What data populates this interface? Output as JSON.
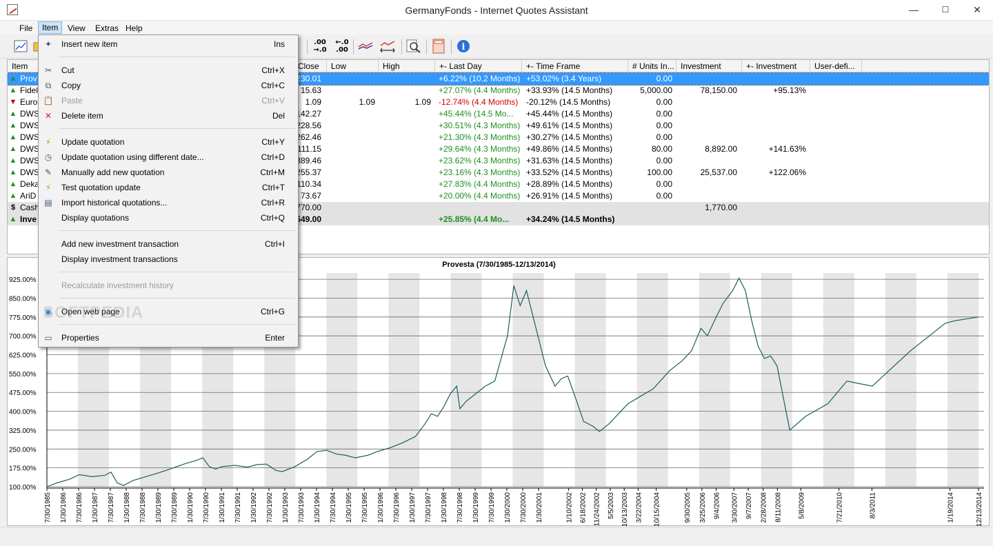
{
  "window": {
    "title": "GermanyFonds - Internet Quotes Assistant",
    "minimize": "—",
    "maximize": "☐",
    "close": "✕"
  },
  "menubar": [
    "File",
    "Item",
    "View",
    "Extras",
    "Help"
  ],
  "toolbar": {
    "icons": [
      "chart-icon",
      "folder-icon",
      "decimals-increase-icon",
      "decimals-decrease-icon",
      "compare-chart-icon",
      "range-chart-icon",
      "magnifier-icon",
      "calculator-icon",
      "info-icon"
    ],
    "dec_inc": ".00\n→.0",
    "dec_dec": "←.0\n.00"
  },
  "columns": [
    "Item",
    "Close",
    "Low",
    "High",
    "+- Last Day",
    "+- Time Frame",
    "# Units In...",
    "Investment",
    "+- Investment",
    "User-defi..."
  ],
  "rows": [
    {
      "icon": "up",
      "name": "Prov",
      "close": "230.01",
      "low": "",
      "high": "",
      "last_day": "+6.22% (10.2 Months)",
      "timeframe": "+53.02% (3.4 Years)",
      "units": "0.00",
      "investment": "",
      "inv_change": "",
      "style": "sel",
      "ld_color": "green"
    },
    {
      "icon": "up",
      "name": "Fidel",
      "close": "15.63",
      "low": "",
      "high": "",
      "last_day": "+27.07% (4.4 Months)",
      "timeframe": "+33.93% (14.5 Months)",
      "units": "5,000.00",
      "investment": "78,150.00",
      "inv_change": "+95.13%",
      "style": "",
      "ld_color": "green"
    },
    {
      "icon": "down",
      "name": "Euro",
      "close": "1.09",
      "low": "1.09",
      "high": "1.09",
      "last_day": "-12.74% (4.4 Months)",
      "timeframe": "-20.12% (14.5 Months)",
      "units": "0.00",
      "investment": "",
      "inv_change": "",
      "style": "",
      "ld_color": "red"
    },
    {
      "icon": "up",
      "name": "DWS",
      "close": "142.27",
      "low": "",
      "high": "",
      "last_day": "+45.44% (14.5 Mo...",
      "timeframe": "+45.44% (14.5 Months)",
      "units": "0.00",
      "investment": "",
      "inv_change": "",
      "style": "",
      "ld_color": "green"
    },
    {
      "icon": "up",
      "name": "DWS",
      "close": "228.56",
      "low": "",
      "high": "",
      "last_day": "+30.51% (4.3 Months)",
      "timeframe": "+49.61% (14.5 Months)",
      "units": "0.00",
      "investment": "",
      "inv_change": "",
      "style": "",
      "ld_color": "green"
    },
    {
      "icon": "up",
      "name": "DWS",
      "close": "262.46",
      "low": "",
      "high": "",
      "last_day": "+21.30% (4.3 Months)",
      "timeframe": "+30.27% (14.5 Months)",
      "units": "0.00",
      "investment": "",
      "inv_change": "",
      "style": "",
      "ld_color": "green"
    },
    {
      "icon": "up",
      "name": "DWS",
      "close": "111.15",
      "low": "",
      "high": "",
      "last_day": "+29.64% (4.3 Months)",
      "timeframe": "+49.86% (14.5 Months)",
      "units": "80.00",
      "investment": "8,892.00",
      "inv_change": "+141.63%",
      "style": "",
      "ld_color": "green"
    },
    {
      "icon": "up!",
      "name": "DWS",
      "close": "389.46",
      "low": "",
      "high": "",
      "last_day": "+23.62% (4.3 Months)",
      "timeframe": "+31.63% (14.5 Months)",
      "units": "0.00",
      "investment": "",
      "inv_change": "",
      "style": "",
      "ld_color": "green"
    },
    {
      "icon": "up",
      "name": "DWS",
      "close": "255.37",
      "low": "",
      "high": "",
      "last_day": "+23.16% (4.3 Months)",
      "timeframe": "+33.52% (14.5 Months)",
      "units": "100.00",
      "investment": "25,537.00",
      "inv_change": "+122.06%",
      "style": "",
      "ld_color": "green"
    },
    {
      "icon": "up!",
      "name": "Deka",
      "close": "110.34",
      "low": "",
      "high": "",
      "last_day": "+27.83% (4.4 Months)",
      "timeframe": "+28.89% (14.5 Months)",
      "units": "0.00",
      "investment": "",
      "inv_change": "",
      "style": "",
      "ld_color": "green"
    },
    {
      "icon": "up",
      "name": "AriD",
      "close": "73.67",
      "low": "",
      "high": "",
      "last_day": "+20.00% (4.4 Months)",
      "timeframe": "+26.91% (14.5 Months)",
      "units": "0.00",
      "investment": "",
      "inv_change": "",
      "style": "",
      "ld_color": "green"
    },
    {
      "icon": "$",
      "name": "Cash",
      "close": "770.00",
      "low": "",
      "high": "",
      "last_day": "",
      "timeframe": "",
      "units": "",
      "investment": "1,770.00",
      "inv_change": "",
      "style": "gray",
      "ld_color": "green"
    },
    {
      "icon": "up",
      "name": "Inve",
      "close": "549.00",
      "low": "",
      "high": "",
      "last_day": "+25.85% (4.4 Mo...",
      "timeframe": "+34.24% (14.5 Months)",
      "units": "",
      "investment": "",
      "inv_change": "",
      "style": "gray bold",
      "ld_color": "green"
    }
  ],
  "item_menu": [
    {
      "label": "Insert new item",
      "shortcut": "Ins",
      "icon": "✦",
      "icon_name": "insert-item-icon",
      "disabled": false,
      "sep_before": false
    },
    {
      "label": "Cut",
      "shortcut": "Ctrl+X",
      "icon": "✂",
      "icon_name": "scissors-icon",
      "disabled": false,
      "sep_before": true
    },
    {
      "label": "Copy",
      "shortcut": "Ctrl+C",
      "icon": "⧉",
      "icon_name": "copy-icon",
      "disabled": false,
      "sep_before": false
    },
    {
      "label": "Paste",
      "shortcut": "Ctrl+V",
      "icon": "📋",
      "icon_name": "paste-icon",
      "disabled": true,
      "sep_before": false
    },
    {
      "label": "Delete item",
      "shortcut": "Del",
      "icon": "✕",
      "icon_name": "delete-icon",
      "disabled": false,
      "sep_before": false
    },
    {
      "label": "Update quotation",
      "shortcut": "Ctrl+Y",
      "icon": "⚡",
      "icon_name": "lightning-icon",
      "disabled": false,
      "sep_before": true
    },
    {
      "label": "Update quotation using different date...",
      "shortcut": "Ctrl+D",
      "icon": "◷",
      "icon_name": "clock-icon",
      "disabled": false,
      "sep_before": false
    },
    {
      "label": "Manually add new quotation",
      "shortcut": "Ctrl+M",
      "icon": "✎",
      "icon_name": "pencil-icon",
      "disabled": false,
      "sep_before": false
    },
    {
      "label": "Test quotation update",
      "shortcut": "Ctrl+T",
      "icon": "⚡",
      "icon_name": "test-lightning-icon",
      "disabled": false,
      "sep_before": false
    },
    {
      "label": "Import historical quotations...",
      "shortcut": "Ctrl+R",
      "icon": "▤",
      "icon_name": "import-icon",
      "disabled": false,
      "sep_before": false
    },
    {
      "label": "Display quotations",
      "shortcut": "Ctrl+Q",
      "icon": "",
      "icon_name": "",
      "disabled": false,
      "sep_before": false
    },
    {
      "label": "Add new investment transaction",
      "shortcut": "Ctrl+I",
      "icon": "",
      "icon_name": "",
      "disabled": false,
      "sep_before": true
    },
    {
      "label": "Display investment transactions",
      "shortcut": "",
      "icon": "",
      "icon_name": "",
      "disabled": false,
      "sep_before": false
    },
    {
      "label": "Recalculate investment history",
      "shortcut": "",
      "icon": "",
      "icon_name": "",
      "disabled": true,
      "sep_before": true
    },
    {
      "label": "Open web page",
      "shortcut": "Ctrl+G",
      "icon": "◉",
      "icon_name": "globe-icon",
      "disabled": false,
      "sep_before": true
    },
    {
      "label": "Properties",
      "shortcut": "Enter",
      "icon": "▭",
      "icon_name": "properties-icon",
      "disabled": false,
      "sep_before": true
    }
  ],
  "watermark": "SOFTPEDIA",
  "colors": {
    "accent": "#3399ff",
    "gain": "#1f8f1f",
    "loss": "#d40000",
    "line": "#1b5e5e"
  },
  "chart_data": {
    "type": "line",
    "title": "Provesta (7/30/1985-12/13/2014)",
    "ylim": [
      100,
      950
    ],
    "yticks": [
      "100.00%",
      "175.00%",
      "250.00%",
      "325.00%",
      "400.00%",
      "475.00%",
      "550.00%",
      "625.00%",
      "700.00%",
      "775.00%",
      "850.00%",
      "925.00%"
    ],
    "ytick_values": [
      100,
      175,
      250,
      325,
      400,
      475,
      550,
      625,
      700,
      775,
      850,
      925
    ],
    "xticks": [
      "7/30/1985",
      "1/30/1986",
      "7/30/1986",
      "1/30/1987",
      "7/30/1987",
      "1/30/1988",
      "7/30/1988",
      "1/30/1989",
      "7/30/1989",
      "1/30/1990",
      "7/30/1990",
      "1/30/1991",
      "7/30/1991",
      "1/30/1992",
      "7/30/1992",
      "1/30/1993",
      "7/30/1993",
      "1/30/1994",
      "7/30/1994",
      "1/30/1995",
      "7/30/1995",
      "1/30/1996",
      "7/30/1996",
      "1/30/1997",
      "7/30/1997",
      "1/30/1998",
      "7/30/1998",
      "1/30/1999",
      "7/30/1999",
      "1/30/2000",
      "7/30/2000",
      "1/30/2001",
      "1/10/2002",
      "6/18/2002",
      "11/24/2002",
      "5/5/2003",
      "10/13/2003",
      "3/22/2004",
      "10/15/2004",
      "9/30/2005",
      "3/25/2006",
      "9/4/2006",
      "3/30/2007",
      "9/7/2007",
      "2/28/2008",
      "8/11/2008",
      "5/8/2009",
      "7/21/2010",
      "8/3/2011",
      "1/19/2014",
      "12/13/2014"
    ],
    "xtick_years": [
      1985.58,
      1986.08,
      1986.58,
      1987.08,
      1987.58,
      1988.08,
      1988.58,
      1989.08,
      1989.58,
      1990.08,
      1990.58,
      1991.08,
      1991.58,
      1992.08,
      1992.58,
      1993.08,
      1993.58,
      1994.08,
      1994.58,
      1995.08,
      1995.58,
      1996.08,
      1996.58,
      1997.08,
      1997.58,
      1998.08,
      1998.58,
      1999.08,
      1999.58,
      2000.08,
      2000.58,
      2001.08,
      2002.03,
      2002.46,
      2002.9,
      2003.34,
      2003.78,
      2004.22,
      2004.79,
      2005.75,
      2006.23,
      2006.68,
      2007.24,
      2007.69,
      2008.16,
      2008.61,
      2009.35,
      2010.55,
      2011.59,
      2014.05,
      2014.95
    ],
    "series": [
      {
        "values": [
          [
            1985.58,
            100
          ],
          [
            1985.9,
            115
          ],
          [
            1986.3,
            130
          ],
          [
            1986.6,
            148
          ],
          [
            1987.0,
            140
          ],
          [
            1987.4,
            145
          ],
          [
            1987.6,
            158
          ],
          [
            1987.8,
            115
          ],
          [
            1988.0,
            105
          ],
          [
            1988.3,
            125
          ],
          [
            1988.7,
            140
          ],
          [
            1989.1,
            155
          ],
          [
            1989.5,
            172
          ],
          [
            1989.9,
            190
          ],
          [
            1990.3,
            205
          ],
          [
            1990.5,
            215
          ],
          [
            1990.7,
            180
          ],
          [
            1990.9,
            170
          ],
          [
            1991.1,
            180
          ],
          [
            1991.5,
            185
          ],
          [
            1991.9,
            178
          ],
          [
            1992.2,
            188
          ],
          [
            1992.5,
            190
          ],
          [
            1992.8,
            165
          ],
          [
            1993.0,
            160
          ],
          [
            1993.4,
            180
          ],
          [
            1993.8,
            210
          ],
          [
            1994.1,
            240
          ],
          [
            1994.4,
            245
          ],
          [
            1994.7,
            230
          ],
          [
            1995.0,
            225
          ],
          [
            1995.3,
            215
          ],
          [
            1995.7,
            225
          ],
          [
            1996.0,
            240
          ],
          [
            1996.4,
            255
          ],
          [
            1996.8,
            275
          ],
          [
            1997.2,
            300
          ],
          [
            1997.5,
            350
          ],
          [
            1997.7,
            390
          ],
          [
            1997.9,
            380
          ],
          [
            1998.1,
            420
          ],
          [
            1998.3,
            470
          ],
          [
            1998.5,
            500
          ],
          [
            1998.6,
            410
          ],
          [
            1998.8,
            440
          ],
          [
            1999.1,
            470
          ],
          [
            1999.4,
            500
          ],
          [
            1999.7,
            520
          ],
          [
            1999.9,
            610
          ],
          [
            2000.1,
            700
          ],
          [
            2000.3,
            900
          ],
          [
            2000.5,
            820
          ],
          [
            2000.7,
            880
          ],
          [
            2000.9,
            780
          ],
          [
            2001.1,
            680
          ],
          [
            2001.3,
            580
          ],
          [
            2001.6,
            500
          ],
          [
            2001.8,
            530
          ],
          [
            2002.0,
            540
          ],
          [
            2002.2,
            470
          ],
          [
            2002.5,
            360
          ],
          [
            2002.8,
            340
          ],
          [
            2003.0,
            320
          ],
          [
            2003.3,
            350
          ],
          [
            2003.6,
            390
          ],
          [
            2003.9,
            430
          ],
          [
            2004.3,
            460
          ],
          [
            2004.7,
            490
          ],
          [
            2005.2,
            560
          ],
          [
            2005.6,
            600
          ],
          [
            2005.9,
            640
          ],
          [
            2006.2,
            730
          ],
          [
            2006.4,
            700
          ],
          [
            2006.7,
            780
          ],
          [
            2006.9,
            830
          ],
          [
            2007.2,
            880
          ],
          [
            2007.4,
            930
          ],
          [
            2007.6,
            880
          ],
          [
            2007.8,
            760
          ],
          [
            2008.0,
            660
          ],
          [
            2008.2,
            610
          ],
          [
            2008.4,
            620
          ],
          [
            2008.6,
            580
          ],
          [
            2008.85,
            420
          ],
          [
            2009.0,
            325
          ],
          [
            2009.5,
            380
          ],
          [
            2010.2,
            430
          ],
          [
            2010.8,
            520
          ],
          [
            2011.2,
            510
          ],
          [
            2011.6,
            500
          ],
          [
            2012.2,
            570
          ],
          [
            2012.8,
            640
          ],
          [
            2013.4,
            700
          ],
          [
            2013.9,
            750
          ],
          [
            2014.2,
            760
          ],
          [
            2014.95,
            775
          ]
        ]
      }
    ]
  }
}
